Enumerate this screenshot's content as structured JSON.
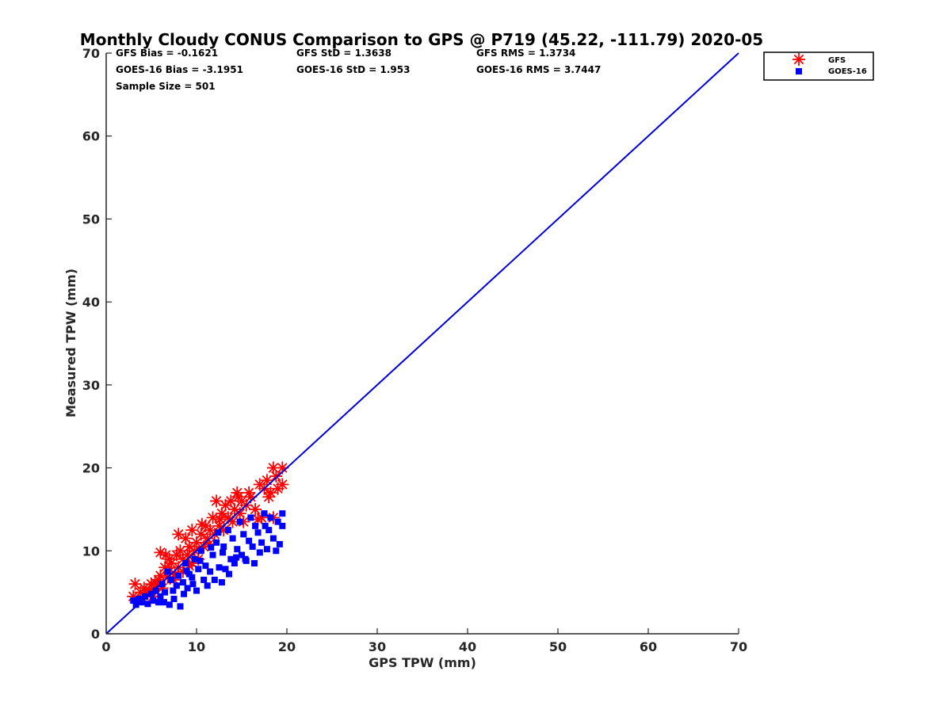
{
  "chart_data": {
    "type": "scatter",
    "title": "Monthly Cloudy CONUS Comparison to GPS @ P719 (45.22, -111.79) 2020-05",
    "xlabel": "GPS TPW (mm)",
    "ylabel": "Measured TPW (mm)",
    "xlim": [
      0,
      70
    ],
    "ylim": [
      0,
      70
    ],
    "xticks": [
      0,
      10,
      20,
      30,
      40,
      50,
      60,
      70
    ],
    "yticks": [
      0,
      10,
      20,
      30,
      40,
      50,
      60,
      70
    ],
    "grid": false,
    "legend_position": "top-right outside",
    "stats": {
      "gfs_bias": "GFS Bias = -0.1621",
      "gfs_std": "GFS StD = 1.3638",
      "gfs_rms": "GFS RMS = 1.3734",
      "goes_bias": "GOES-16 Bias = -3.1951",
      "goes_std": "GOES-16 StD = 1.953",
      "goes_rms": "GOES-16 RMS = 3.7447",
      "sample_size": "Sample Size = 501"
    },
    "reference_line": {
      "x": [
        0,
        70
      ],
      "y": [
        0,
        70
      ],
      "color": "#0000dd"
    },
    "series": [
      {
        "name": "GFS",
        "marker": "asterisk",
        "color": "#ff0000",
        "points": [
          [
            3.0,
            4.5
          ],
          [
            3.2,
            6.0
          ],
          [
            3.5,
            4.0
          ],
          [
            3.8,
            5.0
          ],
          [
            4.0,
            4.2
          ],
          [
            4.2,
            5.5
          ],
          [
            4.5,
            4.8
          ],
          [
            4.8,
            5.2
          ],
          [
            5.0,
            6.0
          ],
          [
            5.2,
            4.5
          ],
          [
            5.5,
            5.8
          ],
          [
            5.8,
            6.5
          ],
          [
            6.0,
            7.0
          ],
          [
            6.0,
            9.8
          ],
          [
            6.2,
            5.5
          ],
          [
            6.5,
            8.0
          ],
          [
            6.8,
            6.8
          ],
          [
            7.0,
            7.5
          ],
          [
            7.0,
            9.0
          ],
          [
            7.2,
            8.5
          ],
          [
            7.5,
            6.5
          ],
          [
            7.8,
            9.5
          ],
          [
            8.0,
            8.0
          ],
          [
            8.0,
            12.0
          ],
          [
            8.2,
            10.0
          ],
          [
            8.5,
            7.5
          ],
          [
            8.5,
            9.0
          ],
          [
            8.8,
            11.5
          ],
          [
            9.0,
            9.5
          ],
          [
            9.2,
            10.5
          ],
          [
            9.5,
            12.5
          ],
          [
            9.5,
            8.5
          ],
          [
            9.8,
            10.0
          ],
          [
            10.0,
            11.0
          ],
          [
            10.2,
            9.0
          ],
          [
            10.5,
            12.0
          ],
          [
            10.8,
            10.5
          ],
          [
            11.0,
            13.0
          ],
          [
            11.2,
            11.5
          ],
          [
            11.5,
            12.5
          ],
          [
            11.8,
            14.0
          ],
          [
            12.0,
            12.0
          ],
          [
            12.2,
            16.0
          ],
          [
            12.5,
            13.0
          ],
          [
            12.8,
            14.5
          ],
          [
            13.0,
            12.5
          ],
          [
            13.2,
            15.5
          ],
          [
            13.5,
            14.0
          ],
          [
            13.8,
            16.0
          ],
          [
            14.0,
            13.5
          ],
          [
            14.2,
            15.0
          ],
          [
            14.5,
            17.0
          ],
          [
            14.8,
            14.5
          ],
          [
            15.0,
            16.0
          ],
          [
            15.2,
            13.5
          ],
          [
            15.5,
            15.5
          ],
          [
            15.8,
            17.0
          ],
          [
            16.0,
            16.5
          ],
          [
            16.5,
            15.0
          ],
          [
            17.0,
            18.0
          ],
          [
            17.2,
            14.0
          ],
          [
            17.5,
            17.5
          ],
          [
            17.8,
            18.5
          ],
          [
            18.0,
            16.5
          ],
          [
            18.2,
            17.0
          ],
          [
            18.5,
            20.0
          ],
          [
            18.5,
            14.0
          ],
          [
            18.8,
            19.0
          ],
          [
            19.0,
            17.5
          ],
          [
            19.5,
            20.0
          ],
          [
            19.5,
            18.0
          ],
          [
            16.8,
            13.8
          ],
          [
            14.6,
            16.5
          ],
          [
            12.6,
            13.8
          ],
          [
            11.4,
            10.8
          ],
          [
            10.6,
            13.2
          ],
          [
            9.2,
            8.2
          ],
          [
            7.6,
            7.2
          ],
          [
            6.6,
            9.5
          ],
          [
            5.4,
            6.2
          ]
        ]
      },
      {
        "name": "GOES-16",
        "marker": "square",
        "color": "#0000ff",
        "points": [
          [
            3.0,
            4.0
          ],
          [
            3.3,
            3.5
          ],
          [
            3.6,
            4.2
          ],
          [
            4.0,
            3.8
          ],
          [
            4.3,
            4.5
          ],
          [
            4.6,
            3.6
          ],
          [
            5.0,
            4.8
          ],
          [
            5.2,
            4.0
          ],
          [
            5.5,
            5.2
          ],
          [
            5.8,
            3.8
          ],
          [
            6.0,
            4.5
          ],
          [
            6.2,
            6.0
          ],
          [
            6.5,
            5.0
          ],
          [
            6.8,
            7.5
          ],
          [
            7.0,
            3.5
          ],
          [
            7.2,
            6.5
          ],
          [
            7.5,
            4.2
          ],
          [
            7.8,
            5.8
          ],
          [
            8.0,
            7.0
          ],
          [
            8.2,
            3.3
          ],
          [
            8.5,
            6.2
          ],
          [
            8.8,
            8.5
          ],
          [
            9.0,
            5.5
          ],
          [
            9.2,
            7.2
          ],
          [
            9.5,
            6.8
          ],
          [
            9.8,
            9.0
          ],
          [
            10.0,
            5.2
          ],
          [
            10.2,
            7.8
          ],
          [
            10.5,
            10.0
          ],
          [
            10.8,
            6.5
          ],
          [
            11.0,
            8.2
          ],
          [
            11.2,
            5.8
          ],
          [
            11.5,
            7.5
          ],
          [
            11.8,
            9.5
          ],
          [
            12.0,
            6.5
          ],
          [
            12.2,
            11.0
          ],
          [
            12.5,
            8.0
          ],
          [
            12.8,
            6.2
          ],
          [
            13.0,
            10.5
          ],
          [
            13.2,
            7.8
          ],
          [
            13.5,
            12.5
          ],
          [
            13.8,
            9.0
          ],
          [
            14.0,
            11.5
          ],
          [
            14.2,
            8.5
          ],
          [
            14.5,
            10.2
          ],
          [
            14.8,
            13.5
          ],
          [
            15.0,
            9.5
          ],
          [
            15.2,
            12.0
          ],
          [
            15.5,
            8.8
          ],
          [
            15.8,
            11.2
          ],
          [
            16.0,
            14.0
          ],
          [
            16.2,
            10.5
          ],
          [
            16.5,
            13.0
          ],
          [
            16.8,
            12.2
          ],
          [
            17.0,
            9.8
          ],
          [
            17.2,
            11.0
          ],
          [
            17.5,
            14.5
          ],
          [
            17.8,
            10.2
          ],
          [
            18.0,
            12.5
          ],
          [
            18.2,
            14.0
          ],
          [
            18.5,
            11.5
          ],
          [
            18.8,
            10.0
          ],
          [
            19.0,
            13.5
          ],
          [
            19.2,
            10.8
          ],
          [
            19.5,
            14.5
          ],
          [
            19.5,
            13.0
          ],
          [
            14.4,
            9.2
          ],
          [
            12.4,
            12.2
          ],
          [
            10.4,
            8.8
          ],
          [
            8.6,
            4.8
          ],
          [
            7.4,
            5.2
          ],
          [
            6.4,
            3.8
          ],
          [
            11.6,
            10.4
          ],
          [
            13.6,
            7.2
          ],
          [
            15.4,
            9.0
          ],
          [
            16.4,
            8.5
          ],
          [
            9.6,
            6.0
          ],
          [
            17.6,
            13.0
          ],
          [
            12.9,
            9.8
          ],
          [
            8.9,
            7.6
          ]
        ]
      }
    ]
  }
}
